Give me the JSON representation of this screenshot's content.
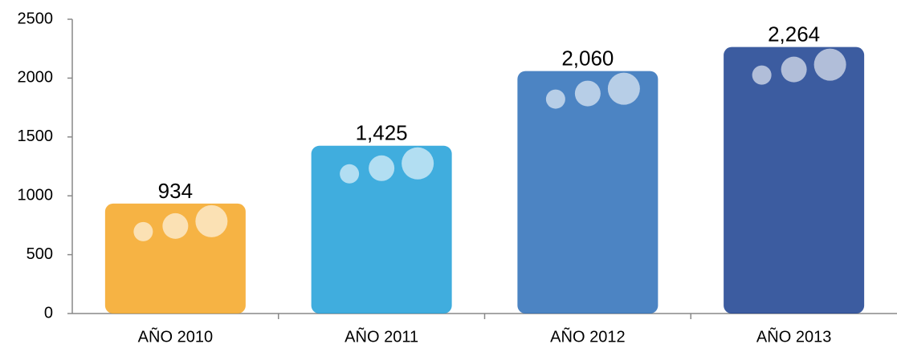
{
  "chart_data": {
    "type": "pictograph",
    "categories": [
      "AÑO 2010",
      "AÑO 2011",
      "AÑO 2012",
      "AÑO 2013"
    ],
    "values": [
      934,
      1425,
      2060,
      2264
    ],
    "value_labels": [
      "934",
      "1,425",
      "2,060",
      "2,264"
    ],
    "colors": [
      "#f5a623",
      "#1e9fd8",
      "#2d6fb8",
      "#1a3f8f"
    ],
    "ylim": [
      0,
      2500
    ],
    "yticks": [
      0,
      500,
      1000,
      1500,
      2000,
      2500
    ]
  }
}
